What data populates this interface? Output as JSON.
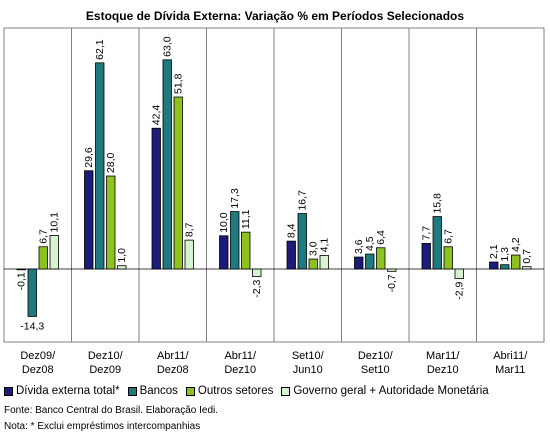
{
  "chart_data": {
    "type": "bar",
    "title": "Estoque de Dívida Externa: Variação % em Períodos Selecionados",
    "categories": [
      [
        "Dez09/",
        "Dez08"
      ],
      [
        "Dez10/",
        "Dez09"
      ],
      [
        "Abr11/",
        "Dez08"
      ],
      [
        "Abr11/",
        "Dez10"
      ],
      [
        "Set10/",
        "Jun10"
      ],
      [
        "Dez10/",
        "Set10"
      ],
      [
        "Mar11/",
        "Dez10"
      ],
      [
        "Abri11/",
        "Mar11"
      ]
    ],
    "series": [
      {
        "name": "Dívida externa total*",
        "color": "#1b1b7a",
        "values": [
          -0.1,
          29.6,
          42.4,
          10.0,
          8.4,
          3.6,
          7.7,
          2.1
        ],
        "labels": [
          "-0,1",
          "29,6",
          "42,4",
          "10,0",
          "8,4",
          "3,6",
          "7,7",
          "2,1"
        ]
      },
      {
        "name": "Bancos",
        "color": "#1f7a80",
        "values": [
          -14.3,
          62.1,
          63.0,
          17.3,
          16.7,
          4.5,
          15.8,
          1.3
        ],
        "labels": [
          "-14,3",
          "62,1",
          "63,0",
          "17,3",
          "16,7",
          "4,5",
          "15,8",
          "1,3"
        ]
      },
      {
        "name": "Outros setores",
        "color": "#8dc21f",
        "values": [
          6.7,
          28.0,
          51.8,
          11.1,
          3.0,
          6.4,
          6.7,
          4.2
        ],
        "labels": [
          "6,7",
          "28,0",
          "51,8",
          "11,1",
          "3,0",
          "6,4",
          "6,7",
          "4,2"
        ]
      },
      {
        "name": "Governo geral + Autoridade Monetária",
        "color": "#d6f2d0",
        "values": [
          10.1,
          1.0,
          8.7,
          -2.3,
          4.1,
          -0.7,
          -2.9,
          0.7
        ],
        "labels": [
          "10,1",
          "1,0",
          "8,7",
          "-2,3",
          "4,1",
          "-0,7",
          "-2,9",
          "0,7"
        ]
      }
    ],
    "ylim": [
      -22,
      70
    ],
    "grid": false,
    "legend_position": "bottom"
  },
  "notes": {
    "source": "Fonte: Banco Central do Brasil. Elaboração Iedi.",
    "footnote": "Nota: * Exclui empréstimos intercompanhias"
  }
}
